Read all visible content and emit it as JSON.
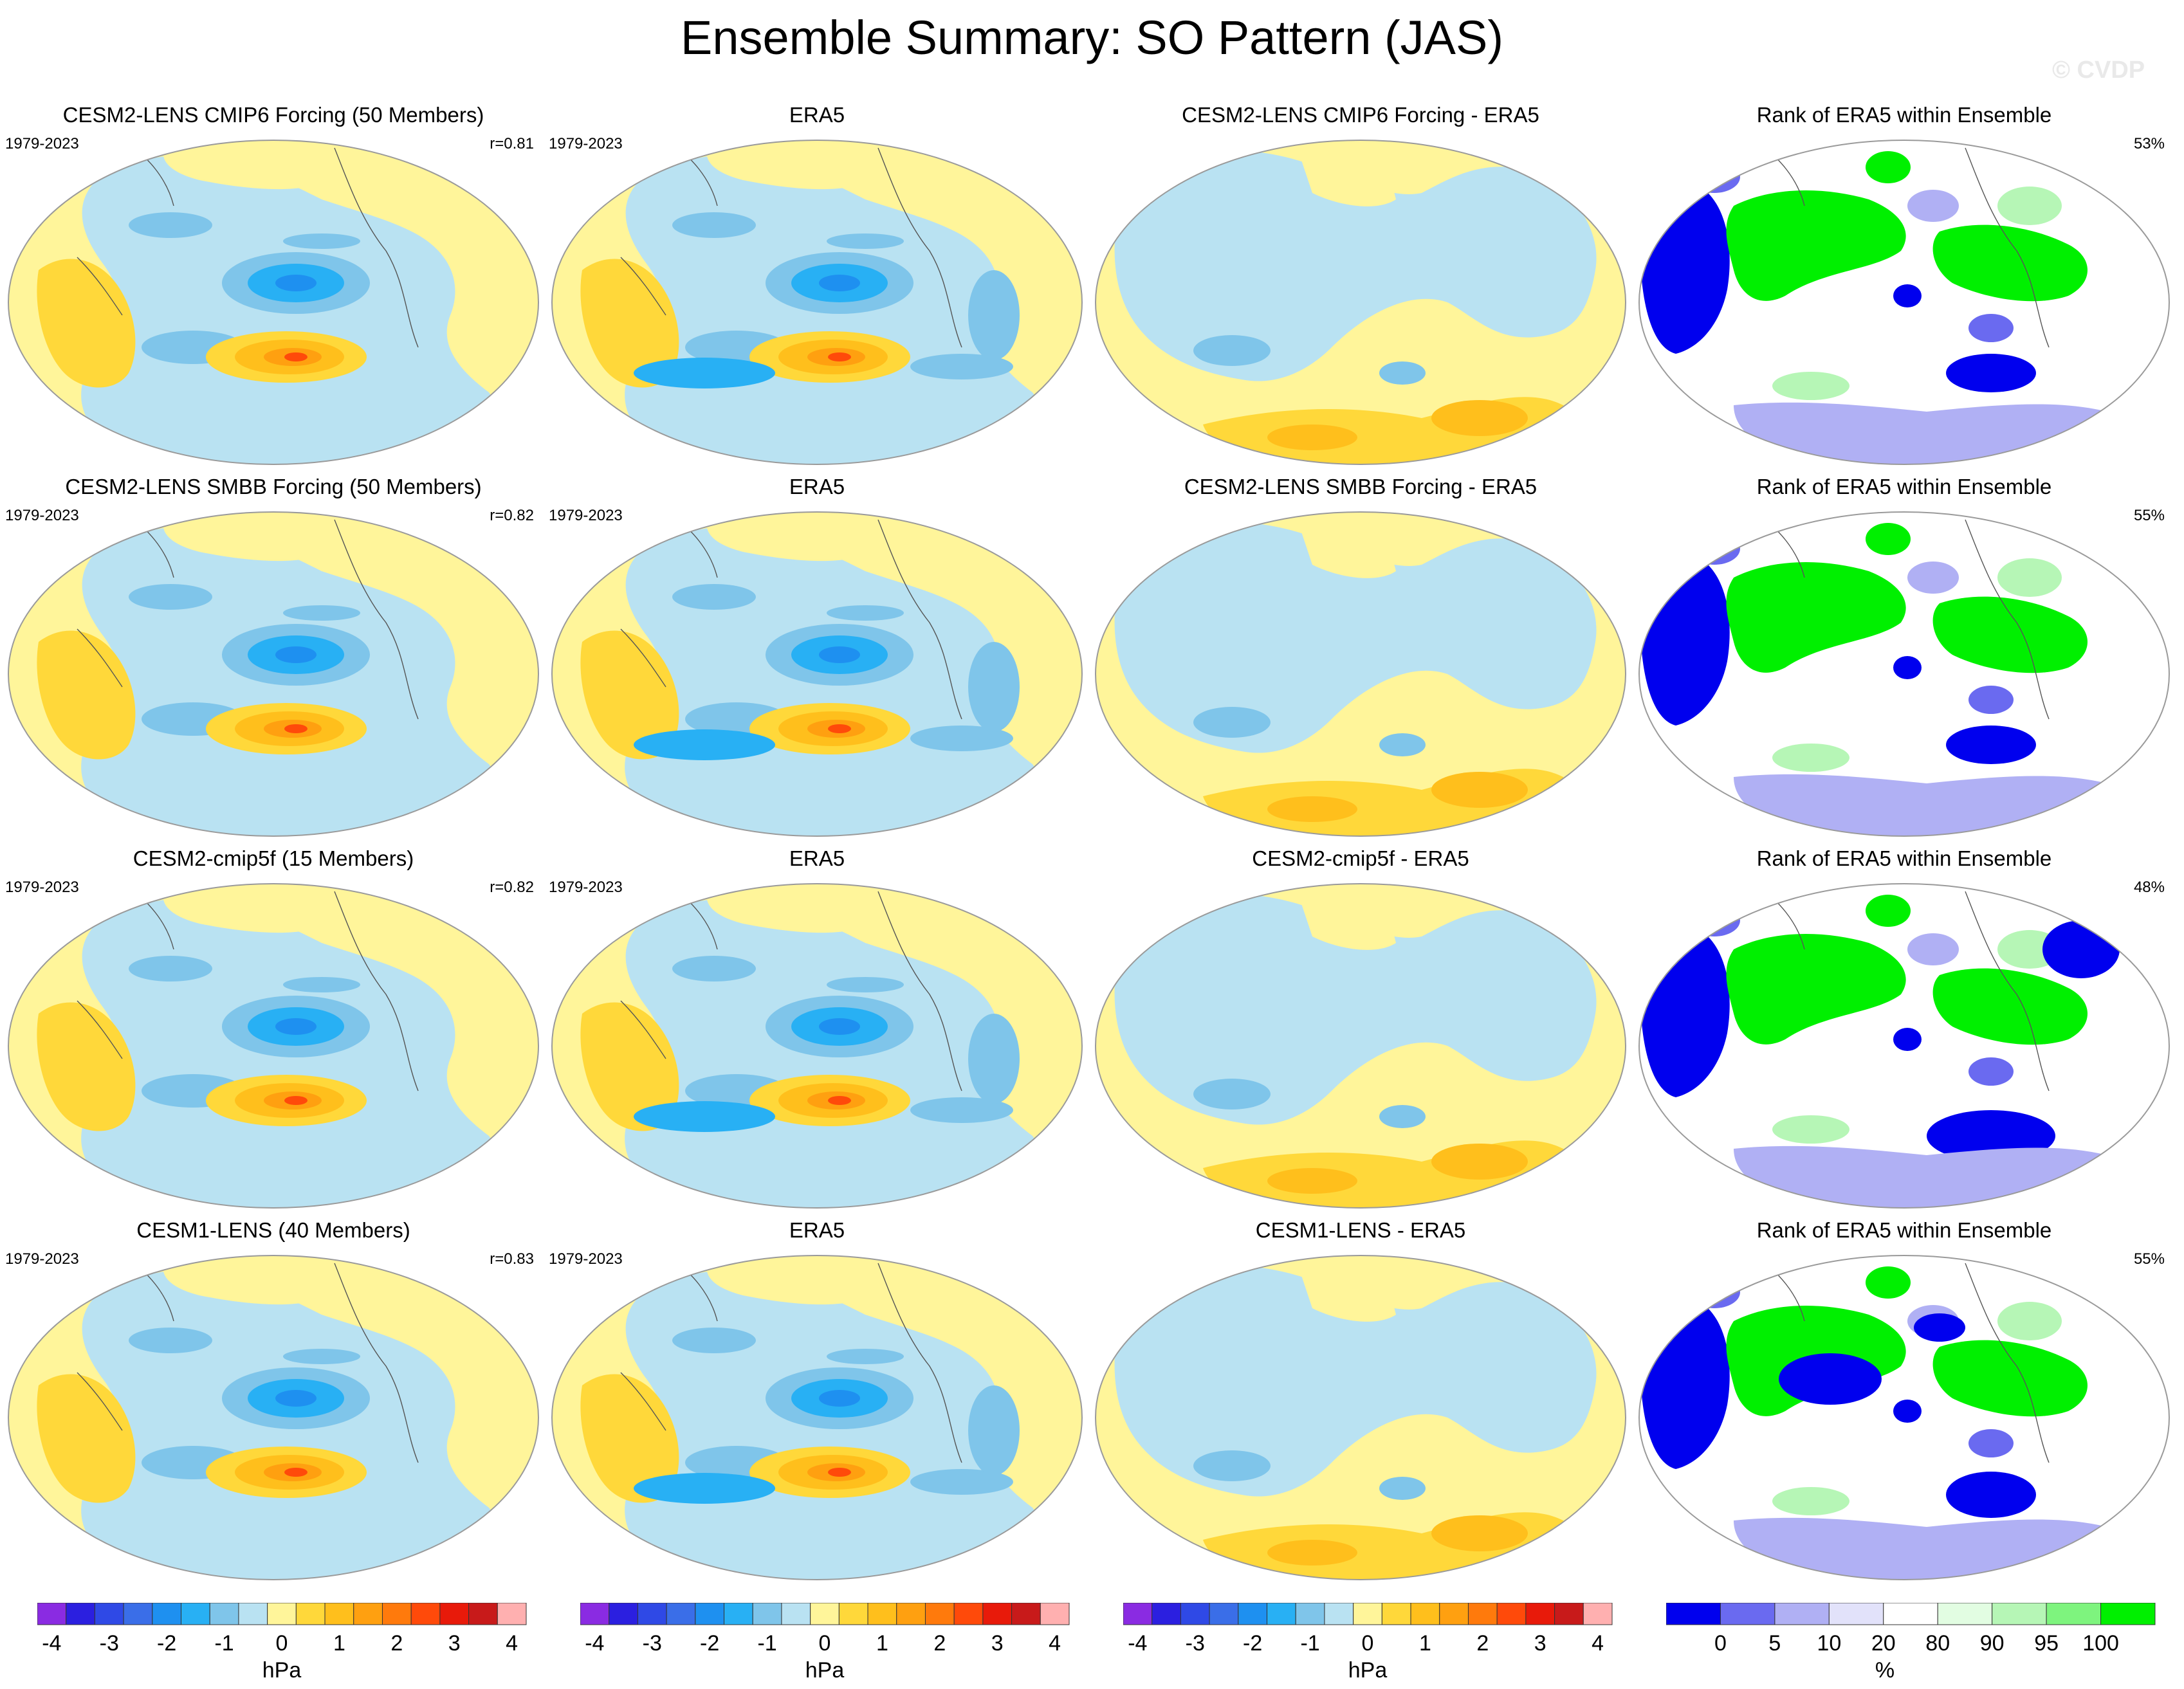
{
  "title": "Ensemble Summary: SO Pattern (JAS)",
  "watermark": "© CVDP",
  "rows": [
    {
      "model": {
        "title": "CESM2-LENS CMIP6 Forcing (50 Members)",
        "period": "1979-2023",
        "r": "r=0.81"
      },
      "obs": {
        "title": "ERA5",
        "period": "1979-2023"
      },
      "diff": {
        "title": "CESM2-LENS CMIP6 Forcing - ERA5"
      },
      "rank": {
        "title": "Rank of ERA5 within Ensemble",
        "pct": "53%"
      }
    },
    {
      "model": {
        "title": "CESM2-LENS SMBB Forcing (50 Members)",
        "period": "1979-2023",
        "r": "r=0.82"
      },
      "obs": {
        "title": "ERA5",
        "period": "1979-2023"
      },
      "diff": {
        "title": "CESM2-LENS SMBB Forcing - ERA5"
      },
      "rank": {
        "title": "Rank of ERA5 within Ensemble",
        "pct": "55%"
      }
    },
    {
      "model": {
        "title": "CESM2-cmip5f (15 Members)",
        "period": "1979-2023",
        "r": "r=0.82"
      },
      "obs": {
        "title": "ERA5",
        "period": "1979-2023"
      },
      "diff": {
        "title": "CESM2-cmip5f - ERA5"
      },
      "rank": {
        "title": "Rank of ERA5 within Ensemble",
        "pct": "48%"
      }
    },
    {
      "model": {
        "title": "CESM1-LENS (40 Members)",
        "period": "1979-2023",
        "r": "r=0.83"
      },
      "obs": {
        "title": "ERA5",
        "period": "1979-2023"
      },
      "diff": {
        "title": "CESM1-LENS - ERA5"
      },
      "rank": {
        "title": "Rank of ERA5 within Ensemble",
        "pct": "55%"
      }
    }
  ],
  "colorbars": {
    "hpa": {
      "unit": "hPa",
      "colors": [
        "#8a2be2",
        "#2b1fe0",
        "#2f49e6",
        "#3a6ee8",
        "#1e90f0",
        "#28b0f4",
        "#7fc5ea",
        "#b9e2f2",
        "#fff59a",
        "#ffd83a",
        "#ffbf1c",
        "#ffa010",
        "#ff7a0c",
        "#ff4a0a",
        "#e81a0a",
        "#c81a1a",
        "#ffb0b0"
      ],
      "ticks": [
        "-4",
        "-3",
        "-2",
        "-1",
        "0",
        "1",
        "2",
        "3",
        "4"
      ]
    },
    "rank": {
      "unit": "%",
      "colors": [
        "#0000ee",
        "#6a6af0",
        "#b0b0f4",
        "#e2e2fa",
        "#ffffff",
        "#e2fde2",
        "#b6f6b6",
        "#7ef47e",
        "#00f000"
      ],
      "ticks": [
        "0",
        "5",
        "10",
        "20",
        "80",
        "90",
        "95",
        "100"
      ]
    }
  },
  "palette": {
    "yellow": "#fff59a",
    "lightblue": "#b9e2f2",
    "midblue": "#7fc5ea",
    "blue": "#28b0f4",
    "deepblue": "#1e90f0",
    "gold": "#ffd83a",
    "orange": "#ffbf1c",
    "darkorange": "#ffa010",
    "red": "#ff4a0a",
    "rankblue": "#0000ee",
    "rankmid": "#6a6af0",
    "ranklight": "#b0b0f4",
    "rankgreen": "#00f000",
    "rankpale": "#b6f6b6"
  }
}
